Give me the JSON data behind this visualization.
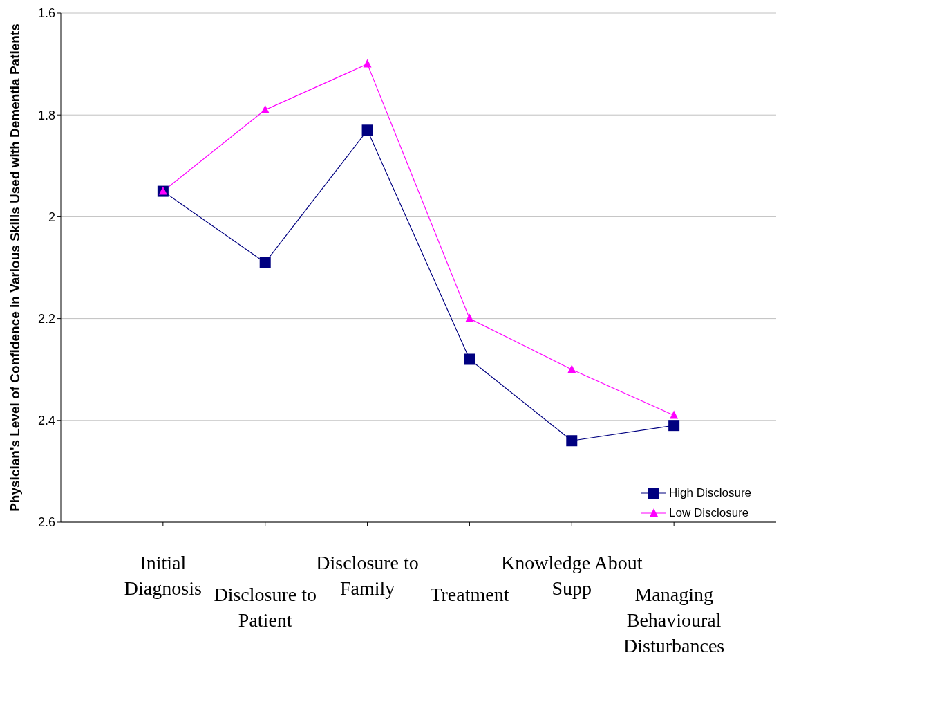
{
  "chart_data": {
    "type": "line",
    "ylabel": "Physician's Level of Confidence in Various Skills Used with Dementia Patients",
    "categories": [
      "Initial Diagnosis",
      "Disclosure to Patient",
      "Disclosure to Family",
      "Treatment",
      "Knowledge About Supp",
      "Managing Behavioural Disturbances"
    ],
    "series": [
      {
        "name": "High Disclosure",
        "color": "#000080",
        "marker": "square",
        "values": [
          1.95,
          2.09,
          1.83,
          2.28,
          2.44,
          2.41
        ]
      },
      {
        "name": "Low Disclosure",
        "color": "#ff00ff",
        "marker": "triangle",
        "values": [
          1.95,
          1.79,
          1.7,
          2.2,
          2.3,
          2.39
        ]
      }
    ],
    "ylim": [
      2.6,
      1.6
    ],
    "yticks": [
      1.6,
      1.8,
      2,
      2.2,
      2.4,
      2.6
    ],
    "grid": "y",
    "legend": "bottom right"
  }
}
